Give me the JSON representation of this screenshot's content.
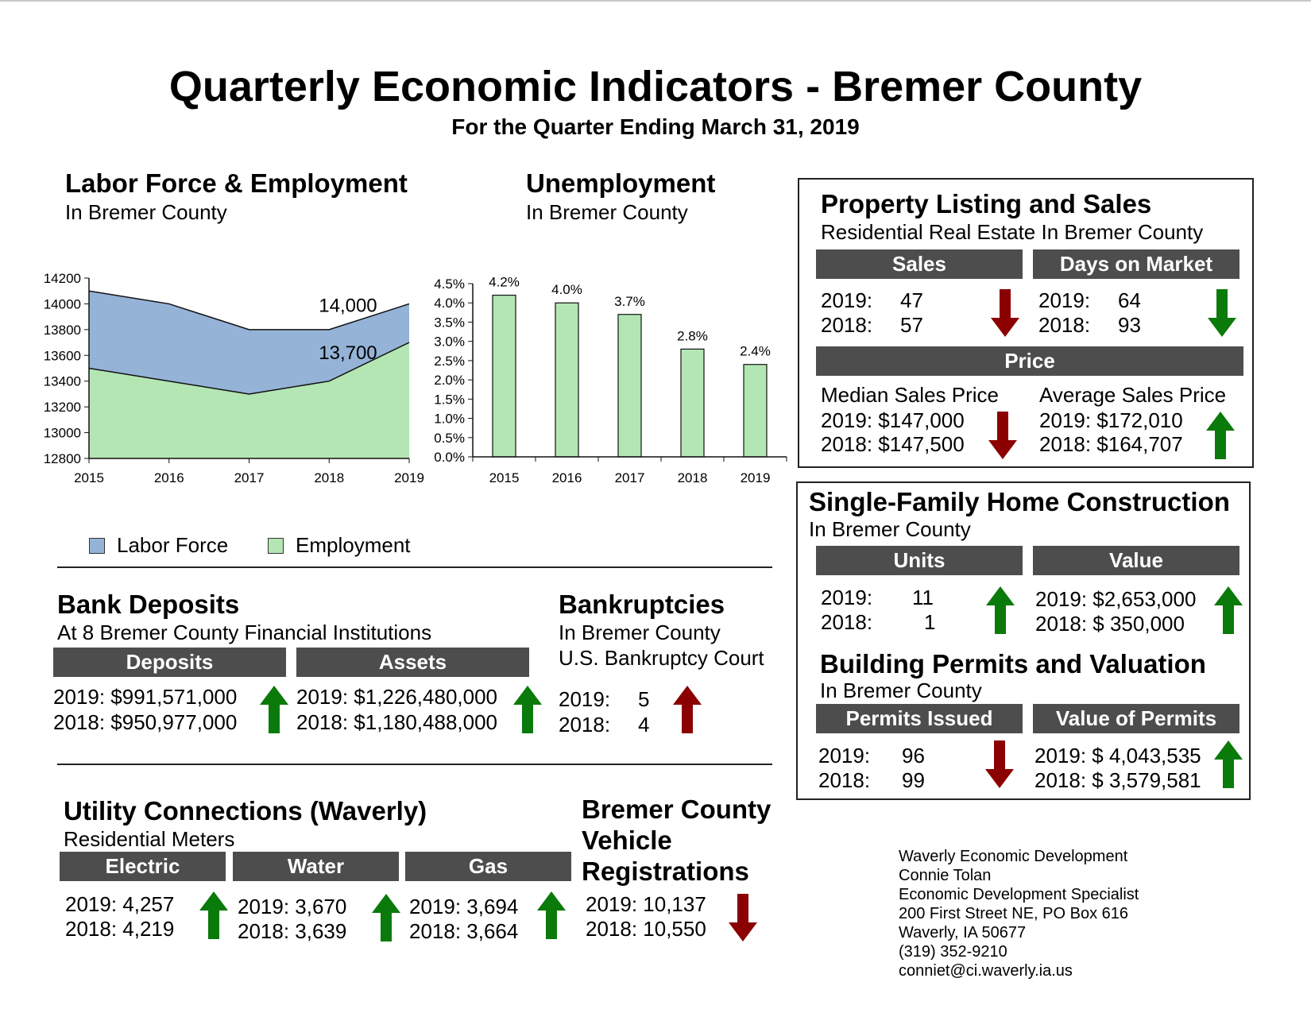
{
  "title": "Quarterly Economic Indicators - Bremer County",
  "subtitle": "For the Quarter Ending March 31, 2019",
  "colors": {
    "labor_force": "#95b3d7",
    "employment": "#b3e6b3",
    "up": "#0a7a0a",
    "down": "#8b0000",
    "header_bar": "#4d4d4d"
  },
  "labor": {
    "title": "Labor Force & Employment",
    "subtitle": "In Bremer County",
    "legend": [
      "Labor Force",
      "Employment"
    ]
  },
  "unemp": {
    "title": "Unemployment",
    "subtitle": "In Bremer County"
  },
  "property": {
    "title": "Property Listing and Sales",
    "subtitle": "Residential Real Estate In Bremer County",
    "sales_hdr": "Sales",
    "dom_hdr": "Days on Market",
    "price_hdr": "Price",
    "sales": {
      "y2019": "2019:",
      "v2019": "47",
      "y2018": "2018:",
      "v2018": "57",
      "trend": "down-red"
    },
    "dom": {
      "y2019": "2019:",
      "v2019": "64",
      "y2018": "2018:",
      "v2018": "93",
      "trend": "down-green"
    },
    "median": {
      "label": "Median Sales Price",
      "r2019": "2019:  $147,000",
      "r2018": "2018:  $147,500",
      "trend": "down-red"
    },
    "average": {
      "label": "Average Sales Price",
      "r2019": "2019:  $172,010",
      "r2018": "2018:  $164,707",
      "trend": "up-green"
    }
  },
  "construction": {
    "title": "Single-Family Home Construction",
    "subtitle": "In Bremer County",
    "units_hdr": "Units",
    "value_hdr": "Value",
    "units": {
      "y2019": "2019:",
      "v2019": "11",
      "y2018": "2018:",
      "v2018": "1",
      "trend": "up-green"
    },
    "value": {
      "r2019": "2019: $2,653,000",
      "r2018": "2018: $   350,000",
      "trend": "up-green"
    },
    "permits_title": "Building Permits and Valuation",
    "permits_subtitle": "In Bremer County",
    "permits_hdr": "Permits Issued",
    "permit_value_hdr": "Value of Permits",
    "permits": {
      "y2019": "2019:",
      "v2019": "96",
      "y2018": "2018:",
      "v2018": "99",
      "trend": "down-red"
    },
    "permit_value": {
      "r2019": "2019: $ 4,043,535",
      "r2018": "2018: $ 3,579,581",
      "trend": "up-green"
    }
  },
  "bank": {
    "title": "Bank Deposits",
    "subtitle": "At 8 Bremer County Financial Institutions",
    "deposits_hdr": "Deposits",
    "assets_hdr": "Assets",
    "deposits": {
      "r2019": "2019:  $991,571,000",
      "r2018": "2018:  $950,977,000",
      "trend": "up-green"
    },
    "assets": {
      "r2019": "2019: $1,226,480,000",
      "r2018": "2018: $1,180,488,000",
      "trend": "up-green"
    }
  },
  "bankruptcy": {
    "title": "Bankruptcies",
    "sub1": "In Bremer County",
    "sub2": "U.S. Bankruptcy Court",
    "y2019": "2019:",
    "v2019": "5",
    "y2018": "2018:",
    "v2018": "4",
    "trend": "up-red"
  },
  "utility": {
    "title": "Utility Connections (Waverly)",
    "subtitle": "Residential Meters",
    "electric_hdr": "Electric",
    "water_hdr": "Water",
    "gas_hdr": "Gas",
    "electric": {
      "r2019": "2019:  4,257",
      "r2018": "2018:  4,219",
      "trend": "up-green"
    },
    "water": {
      "r2019": "2019:  3,670",
      "r2018": "2018:  3,639",
      "trend": "up-green"
    },
    "gas": {
      "r2019": "2019:  3,694",
      "r2018": "2018:  3,664",
      "trend": "up-green"
    }
  },
  "vehicle": {
    "title_l1": "Bremer County",
    "title_l2": "Vehicle",
    "title_l3": "Registrations",
    "r2019": "2019:  10,137",
    "r2018": "2018:  10,550",
    "trend": "down-red"
  },
  "contact": [
    "Waverly Economic Development",
    "Connie Tolan",
    "Economic Development Specialist",
    "200 First Street NE, PO Box 616",
    "Waverly, IA 50677",
    "(319) 352-9210",
    "conniet@ci.waverly.ia.us"
  ],
  "chart_data": [
    {
      "type": "area",
      "x": [
        "2015",
        "2016",
        "2017",
        "2018",
        "2019"
      ],
      "series": [
        {
          "name": "Labor Force",
          "values": [
            14100,
            14000,
            13800,
            13800,
            14000
          ]
        },
        {
          "name": "Employment",
          "values": [
            13500,
            13400,
            13300,
            13400,
            13700
          ]
        }
      ],
      "annotations": [
        "14,000",
        "13,700"
      ],
      "ylim": [
        12800,
        14200
      ],
      "yticks": [
        "12800",
        "13000",
        "13200",
        "13400",
        "13600",
        "13800",
        "14000",
        "14200"
      ],
      "legend": "bottom"
    },
    {
      "type": "bar",
      "categories": [
        "2015",
        "2016",
        "2017",
        "2018",
        "2019"
      ],
      "values": [
        4.2,
        4.0,
        3.7,
        2.8,
        2.4
      ],
      "data_labels": [
        "4.2%",
        "4.0%",
        "3.7%",
        "2.8%",
        "2.4%"
      ],
      "ylim": [
        0,
        4.5
      ],
      "yticks": [
        "0.0%",
        "0.5%",
        "1.0%",
        "1.5%",
        "2.0%",
        "2.5%",
        "3.0%",
        "3.5%",
        "4.0%",
        "4.5%"
      ]
    }
  ]
}
